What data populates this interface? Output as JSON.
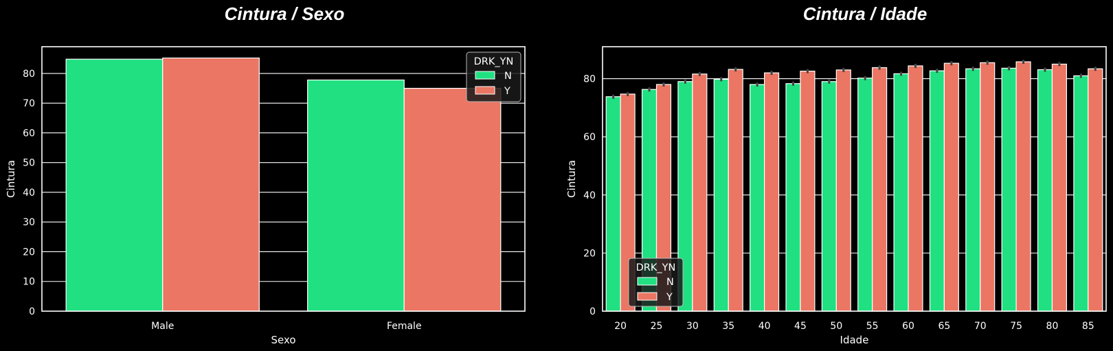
{
  "colors": {
    "N": "#20E081",
    "Y": "#EA7663",
    "background": "#000000",
    "errorbar": "#444444"
  },
  "chart_data": [
    {
      "type": "bar",
      "title": "Cintura / Sexo",
      "xlabel": "Sexo",
      "ylabel": "Cintura",
      "categories": [
        "Male",
        "Female"
      ],
      "ylim": [
        0,
        89
      ],
      "yticks": [
        0,
        10,
        20,
        30,
        40,
        50,
        60,
        70,
        80
      ],
      "grid": true,
      "legend": {
        "title": "DRK_YN",
        "placement": "top-right"
      },
      "series": [
        {
          "name": "N",
          "values": [
            84.8,
            77.8
          ]
        },
        {
          "name": "Y",
          "values": [
            85.2,
            75.0
          ]
        }
      ]
    },
    {
      "type": "bar",
      "title": "Cintura / Idade",
      "xlabel": "Idade",
      "ylabel": "Cintura",
      "categories": [
        "20",
        "25",
        "30",
        "35",
        "40",
        "45",
        "50",
        "55",
        "60",
        "65",
        "70",
        "75",
        "80",
        "85"
      ],
      "ylim": [
        0,
        91
      ],
      "yticks": [
        0,
        20,
        40,
        60,
        80
      ],
      "grid": true,
      "legend": {
        "title": "DRK_YN",
        "placement": "bottom-left"
      },
      "series": [
        {
          "name": "N",
          "values": [
            73.8,
            76.3,
            79.0,
            79.8,
            78.0,
            78.3,
            79.0,
            80.2,
            81.7,
            82.7,
            83.4,
            83.6,
            83.1,
            81.0
          ]
        },
        {
          "name": "Y",
          "values": [
            74.7,
            78.0,
            81.6,
            83.2,
            82.0,
            82.6,
            83.0,
            83.8,
            84.4,
            85.3,
            85.5,
            85.8,
            85.0,
            83.4
          ]
        }
      ]
    }
  ]
}
